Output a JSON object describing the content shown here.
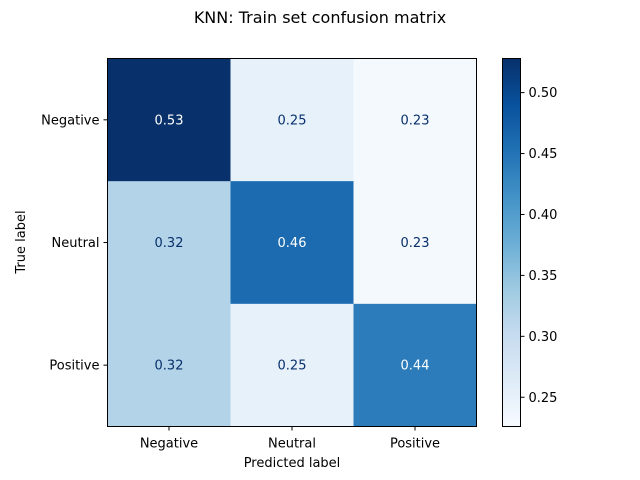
{
  "chart_data": {
    "type": "heatmap",
    "title": "KNN: Train set confusion matrix",
    "xlabel": "Predicted label",
    "ylabel": "True label",
    "x_categories": [
      "Negative",
      "Neutral",
      "Positive"
    ],
    "y_categories": [
      "Negative",
      "Neutral",
      "Positive"
    ],
    "values": [
      [
        0.53,
        0.25,
        0.23
      ],
      [
        0.32,
        0.46,
        0.23
      ],
      [
        0.32,
        0.25,
        0.44
      ]
    ],
    "value_labels": [
      [
        "0.53",
        "0.25",
        "0.23"
      ],
      [
        "0.32",
        "0.46",
        "0.23"
      ],
      [
        "0.32",
        "0.25",
        "0.44"
      ]
    ],
    "colormap": "Blues",
    "colorbar": {
      "range": [
        0.226,
        0.528
      ],
      "ticks": [
        0.25,
        0.3,
        0.35,
        0.4,
        0.45,
        0.5
      ],
      "tick_labels": [
        "0.25",
        "0.30",
        "0.35",
        "0.40",
        "0.45",
        "0.50"
      ]
    },
    "colors": {
      "dark_text": "#08306b",
      "light_text": "#ffffff"
    }
  }
}
